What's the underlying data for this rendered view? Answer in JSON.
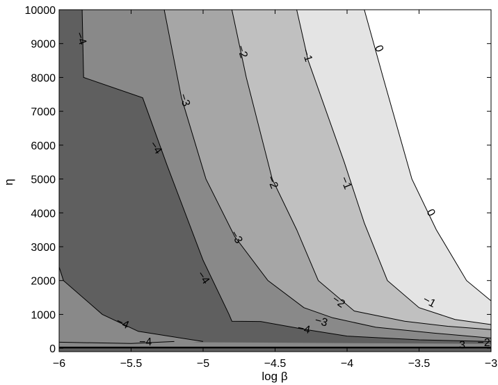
{
  "chart_data": {
    "type": "contour",
    "xlabel": "log β",
    "ylabel": "η",
    "xlim": [
      -6,
      -3
    ],
    "ylim": [
      -100,
      10000
    ],
    "grid": false,
    "x_ticks": [
      -6,
      -5.5,
      -5,
      -4.5,
      -4,
      -3.5,
      -3
    ],
    "x_tick_labels": [
      "−6",
      "−5.5",
      "−5",
      "−4.5",
      "−4",
      "−3.5",
      "−3"
    ],
    "y_ticks": [
      0,
      1000,
      2000,
      3000,
      4000,
      5000,
      6000,
      7000,
      8000,
      9000,
      10000
    ],
    "y_tick_labels": [
      "0",
      "1000",
      "2000",
      "3000",
      "4000",
      "5000",
      "6000",
      "7000",
      "8000",
      "9000",
      "10000"
    ],
    "levels": [
      -4,
      -3,
      -2,
      -1,
      0
    ],
    "fill_colors": [
      "#5f5f5f",
      "#898989",
      "#a6a6a6",
      "#c0c0c0",
      "#e4e4e4",
      "#ffffff"
    ],
    "contour_lines": [
      {
        "level": -4,
        "points": [
          [
            -5.84,
            10000
          ],
          [
            -5.83,
            8000
          ],
          [
            -5.42,
            7400
          ],
          [
            -5.25,
            5400
          ],
          [
            -5.0,
            2600
          ],
          [
            -4.82,
            1000
          ],
          [
            -4.8,
            800
          ],
          [
            -4.6,
            790
          ],
          [
            -4.3,
            560
          ],
          [
            -4.0,
            360
          ],
          [
            -3.5,
            250
          ],
          [
            -3.0,
            200
          ]
        ]
      },
      {
        "level": -3,
        "points": [
          [
            -5.27,
            10000
          ],
          [
            -5.15,
            7400
          ],
          [
            -4.98,
            5000
          ],
          [
            -4.78,
            3300
          ],
          [
            -4.55,
            2000
          ],
          [
            -4.3,
            1200
          ],
          [
            -4.1,
            900
          ],
          [
            -3.8,
            620
          ],
          [
            -3.4,
            450
          ],
          [
            -3.0,
            300
          ]
        ]
      },
      {
        "level": -2,
        "points": [
          [
            -4.8,
            10000
          ],
          [
            -4.7,
            8000
          ],
          [
            -4.52,
            5000
          ],
          [
            -4.35,
            3500
          ],
          [
            -4.2,
            2000
          ],
          [
            -3.95,
            1100
          ],
          [
            -3.6,
            800
          ],
          [
            -3.3,
            650
          ],
          [
            -3.0,
            550
          ]
        ]
      },
      {
        "level": -1,
        "points": [
          [
            -4.35,
            10000
          ],
          [
            -4.27,
            8500
          ],
          [
            -4.02,
            5500
          ],
          [
            -3.88,
            3700
          ],
          [
            -3.72,
            2000
          ],
          [
            -3.5,
            1200
          ],
          [
            -3.25,
            850
          ],
          [
            -3.0,
            700
          ]
        ]
      },
      {
        "level": 0,
        "points": [
          [
            -3.88,
            10000
          ],
          [
            -3.75,
            8000
          ],
          [
            -3.55,
            5000
          ],
          [
            -3.38,
            3500
          ],
          [
            -3.17,
            2000
          ],
          [
            -3.0,
            1400
          ]
        ]
      },
      {
        "level": -4,
        "points": [
          [
            -6.0,
            2400
          ],
          [
            -5.97,
            2000
          ],
          [
            -5.7,
            1000
          ],
          [
            -5.45,
            500
          ],
          [
            -5.0,
            200
          ]
        ]
      },
      {
        "level": -4,
        "points": [
          [
            -6.0,
            180
          ],
          [
            -5.5,
            140
          ],
          [
            -5.2,
            200
          ]
        ]
      }
    ],
    "contour_labels": [
      {
        "text": "−4",
        "x": -5.85,
        "y": 9150,
        "angle": 70
      },
      {
        "text": "−3",
        "x": -5.13,
        "y": 7330,
        "angle": 72
      },
      {
        "text": "−2",
        "x": -4.73,
        "y": 8760,
        "angle": 72
      },
      {
        "text": "−1",
        "x": -4.28,
        "y": 8650,
        "angle": 72
      },
      {
        "text": "0",
        "x": -3.78,
        "y": 8850,
        "angle": 68
      },
      {
        "text": "−4",
        "x": -5.33,
        "y": 5920,
        "angle": 55
      },
      {
        "text": "−2",
        "x": -4.52,
        "y": 4900,
        "angle": 68
      },
      {
        "text": "−1",
        "x": -4.01,
        "y": 4880,
        "angle": 68
      },
      {
        "text": "0",
        "x": -3.42,
        "y": 4000,
        "angle": 60
      },
      {
        "text": "−3",
        "x": -4.77,
        "y": 3280,
        "angle": 60
      },
      {
        "text": "−4",
        "x": -5.0,
        "y": 2080,
        "angle": 55
      },
      {
        "text": "−2",
        "x": -4.06,
        "y": 1370,
        "angle": 35
      },
      {
        "text": "−1",
        "x": -3.43,
        "y": 1370,
        "angle": 28
      },
      {
        "text": "−3",
        "x": -4.18,
        "y": 780,
        "angle": 15
      },
      {
        "text": "−4",
        "x": -4.3,
        "y": 560,
        "angle": 12
      },
      {
        "text": "−4",
        "x": -5.56,
        "y": 730,
        "angle": 25
      },
      {
        "text": "−4",
        "x": -5.4,
        "y": 180,
        "angle": 0
      },
      {
        "text": "−2",
        "x": -3.05,
        "y": 160,
        "angle": 0
      },
      {
        "text": "3",
        "x": -3.2,
        "y": 80,
        "angle": 0
      }
    ]
  }
}
